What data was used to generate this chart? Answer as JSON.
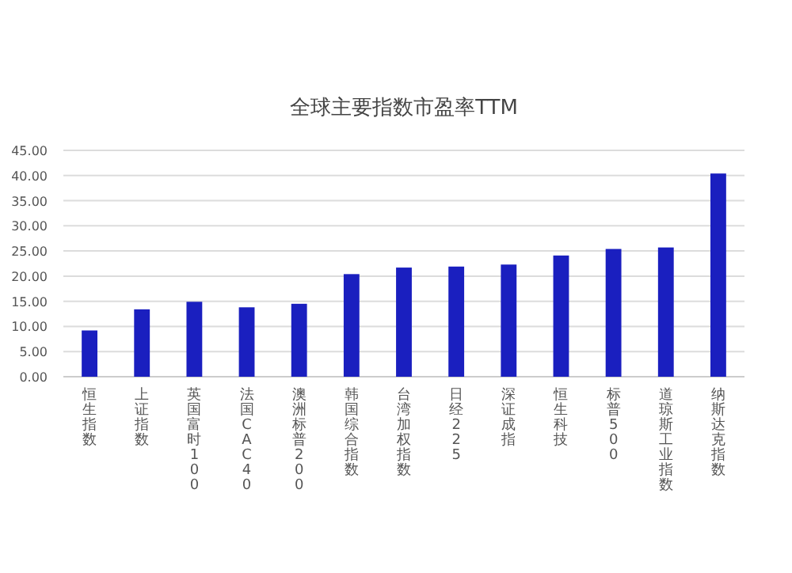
{
  "chart_data": {
    "type": "bar",
    "title": "全球主要指数市盈率TTM",
    "categories": [
      "恒生指数",
      "上证指数",
      "英国富时100",
      "法国CAC40",
      "澳洲标普200",
      "韩国综合指数",
      "台湾加权指数",
      "日经225",
      "深证成指",
      "恒生科技",
      "标普500",
      "道琼斯工业指数",
      "纳斯达克指数"
    ],
    "values": [
      9.2,
      13.4,
      14.9,
      13.8,
      14.5,
      20.4,
      21.7,
      21.9,
      22.3,
      24.1,
      25.4,
      25.7,
      40.4
    ],
    "color": "#1a1fbf",
    "ylim": [
      0,
      45
    ],
    "yticks": [
      {
        "value": 0,
        "label": "0.00"
      },
      {
        "value": 5,
        "label": "5.00"
      },
      {
        "value": 10,
        "label": "10.00"
      },
      {
        "value": 15,
        "label": "15.00"
      },
      {
        "value": 20,
        "label": "20.00"
      },
      {
        "value": 25,
        "label": "25.00"
      },
      {
        "value": 30,
        "label": "30.00"
      },
      {
        "value": 35,
        "label": "35.00"
      },
      {
        "value": 40,
        "label": "40.00"
      },
      {
        "value": 45,
        "label": "45.00"
      }
    ],
    "grid": "y"
  }
}
